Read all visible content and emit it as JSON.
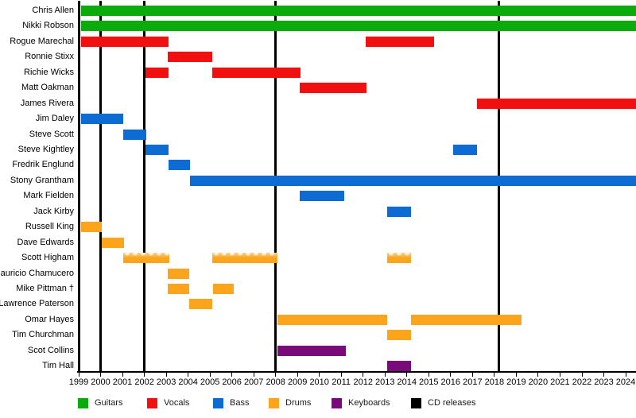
{
  "chart_data": {
    "type": "timeline",
    "title": "",
    "description": "Band members timeline (gantt-style) with instrument color coding and CD release markers",
    "x_axis": {
      "start": 1999,
      "end": 2024,
      "unit": "year",
      "tick_labels": [
        "1999",
        "2000",
        "2001",
        "2002",
        "2003",
        "2004",
        "2005",
        "2006",
        "2007",
        "2008",
        "2009",
        "2010",
        "2011",
        "2012",
        "2013",
        "2014",
        "2015",
        "2016",
        "2017",
        "2018",
        "2019",
        "2020",
        "2021",
        "2022",
        "2023",
        "2024"
      ]
    },
    "colors": {
      "Guitars": "#0aab0a",
      "Vocals": "#f20f0f",
      "Bass": "#0c6cd4",
      "Drums": "#fba41c",
      "Keyboards": "#7a0a7a",
      "CD releases": "#000000"
    },
    "legend": [
      {
        "label": "Guitars"
      },
      {
        "label": "Vocals"
      },
      {
        "label": "Bass"
      },
      {
        "label": "Drums"
      },
      {
        "label": "Keyboards"
      },
      {
        "label": "CD releases"
      }
    ],
    "cd_release_lines": [
      1999.02,
      2000.0,
      2002.0,
      2008.0,
      2018.2
    ],
    "members": [
      {
        "name": "Chris Allen",
        "instrument": "Guitars",
        "periods": [
          {
            "start": 1999.1,
            "end": 2024.5
          }
        ]
      },
      {
        "name": "Nikki Robson",
        "instrument": "Guitars",
        "periods": [
          {
            "start": 1999.1,
            "end": 2024.5
          }
        ]
      },
      {
        "name": "Rogue Marechal",
        "instrument": "Vocals",
        "periods": [
          {
            "start": 1999.1,
            "end": 2003.1
          },
          {
            "start": 2012.1,
            "end": 2015.25
          }
        ]
      },
      {
        "name": "Ronnie Stixx",
        "instrument": "Vocals",
        "periods": [
          {
            "start": 2003.05,
            "end": 2005.1
          }
        ]
      },
      {
        "name": "Richie Wicks",
        "instrument": "Vocals",
        "periods": [
          {
            "start": 2002.05,
            "end": 2003.1
          },
          {
            "start": 2005.1,
            "end": 2009.15
          }
        ]
      },
      {
        "name": "Matt Oakman",
        "instrument": "Vocals",
        "periods": [
          {
            "start": 2009.1,
            "end": 2012.15
          }
        ]
      },
      {
        "name": "James Rivera",
        "instrument": "Vocals",
        "periods": [
          {
            "start": 2017.2,
            "end": 2024.5
          }
        ]
      },
      {
        "name": "Jim Daley",
        "instrument": "Bass",
        "periods": [
          {
            "start": 1999.1,
            "end": 2001.05
          }
        ]
      },
      {
        "name": "Steve Scott",
        "instrument": "Bass",
        "periods": [
          {
            "start": 2001.05,
            "end": 2002.1
          }
        ]
      },
      {
        "name": "Steve Kightley",
        "instrument": "Bass",
        "periods": [
          {
            "start": 2002.05,
            "end": 2003.1
          },
          {
            "start": 2016.1,
            "end": 2017.2
          }
        ]
      },
      {
        "name": "Fredrik Englund",
        "instrument": "Bass",
        "periods": [
          {
            "start": 2003.1,
            "end": 2004.1
          }
        ]
      },
      {
        "name": "Stony Grantham",
        "instrument": "Bass",
        "periods": [
          {
            "start": 2004.1,
            "end": 2024.5
          }
        ]
      },
      {
        "name": "Mark Fielden",
        "instrument": "Bass",
        "periods": [
          {
            "start": 2009.1,
            "end": 2011.15
          }
        ]
      },
      {
        "name": "Jack Kirby",
        "instrument": "Bass",
        "periods": [
          {
            "start": 2013.1,
            "end": 2014.2
          }
        ]
      },
      {
        "name": "Russell King",
        "instrument": "Drums",
        "periods": [
          {
            "start": 1999.1,
            "end": 2000.05
          }
        ]
      },
      {
        "name": "Dave Edwards",
        "instrument": "Drums",
        "periods": [
          {
            "start": 2000.05,
            "end": 2001.07
          }
        ]
      },
      {
        "name": "Scott Higham",
        "instrument": "Drums",
        "periods": [
          {
            "start": 2001.05,
            "end": 2003.15,
            "session": true
          },
          {
            "start": 2005.1,
            "end": 2008.1,
            "session": true
          },
          {
            "start": 2013.1,
            "end": 2014.2,
            "session": true
          }
        ]
      },
      {
        "name": "Mauricio Chamucero",
        "instrument": "Drums",
        "periods": [
          {
            "start": 2003.05,
            "end": 2004.05
          }
        ]
      },
      {
        "name": "Mike Pittman †",
        "instrument": "Drums",
        "periods": [
          {
            "start": 2003.05,
            "end": 2004.05
          },
          {
            "start": 2005.15,
            "end": 2006.1
          }
        ]
      },
      {
        "name": "Lawrence Paterson",
        "instrument": "Drums",
        "periods": [
          {
            "start": 2004.05,
            "end": 2005.1
          }
        ]
      },
      {
        "name": "Omar Hayes",
        "instrument": "Drums",
        "periods": [
          {
            "start": 2008.1,
            "end": 2013.1
          },
          {
            "start": 2014.2,
            "end": 2019.25
          }
        ]
      },
      {
        "name": "Tim Churchman",
        "instrument": "Drums",
        "periods": [
          {
            "start": 2013.1,
            "end": 2014.2
          }
        ]
      },
      {
        "name": "Scot Collins",
        "instrument": "Keyboards",
        "periods": [
          {
            "start": 2008.1,
            "end": 2011.2
          }
        ]
      },
      {
        "name": "Tim Hall",
        "instrument": "Keyboards",
        "periods": [
          {
            "start": 2013.1,
            "end": 2014.2
          }
        ]
      }
    ]
  }
}
